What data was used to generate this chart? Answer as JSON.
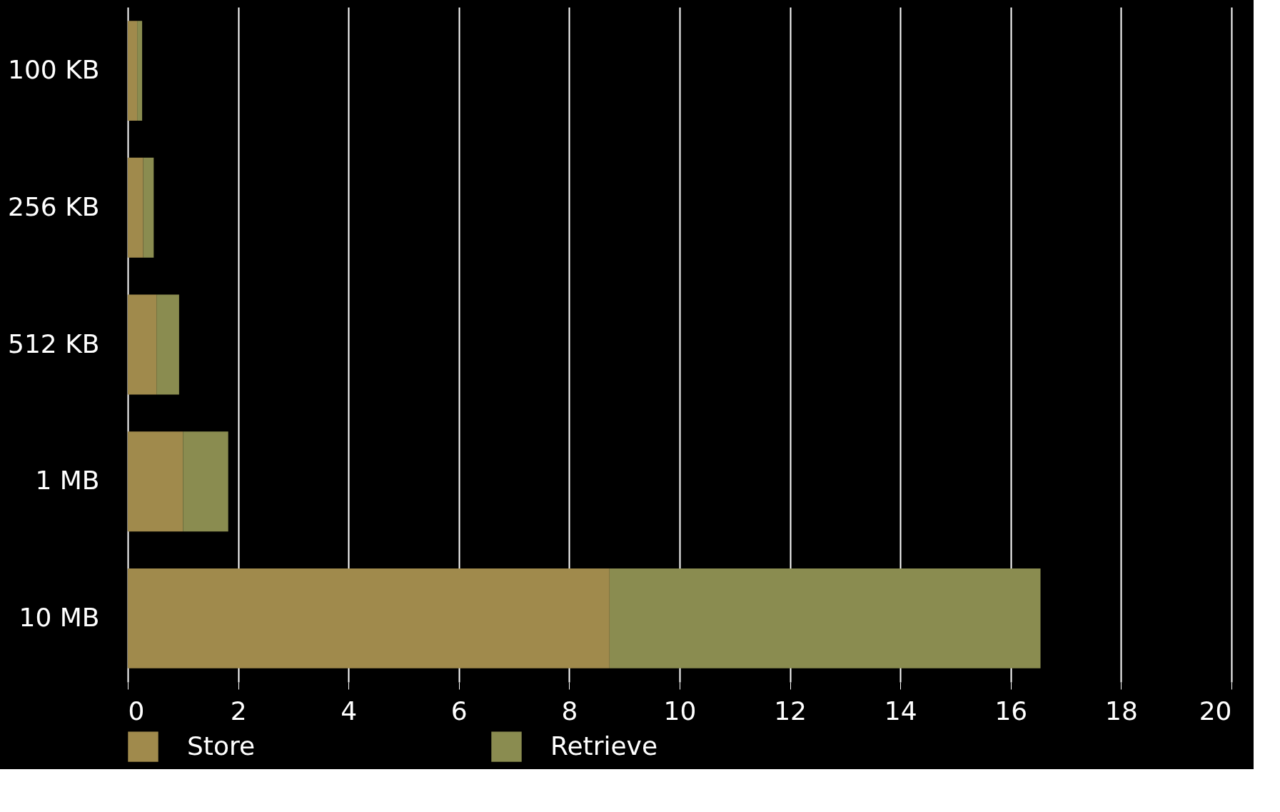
{
  "chart_data": {
    "type": "bar",
    "orientation": "horizontal",
    "stacked": true,
    "categories": [
      "100 KB",
      "256 KB",
      "512 KB",
      "1 MB",
      "10 MB"
    ],
    "series": [
      {
        "name": "Store",
        "color": "#a08a4c",
        "values": [
          0.17,
          0.28,
          0.52,
          1.0,
          8.73
        ]
      },
      {
        "name": "Retrieve",
        "color": "#8a8c50",
        "values": [
          0.09,
          0.19,
          0.41,
          0.82,
          7.81
        ]
      }
    ],
    "xlim": [
      0,
      20
    ],
    "xticks": [
      0,
      2,
      4,
      6,
      8,
      10,
      12,
      14,
      16,
      18,
      20
    ],
    "grid": "x",
    "legend": "bottom"
  }
}
